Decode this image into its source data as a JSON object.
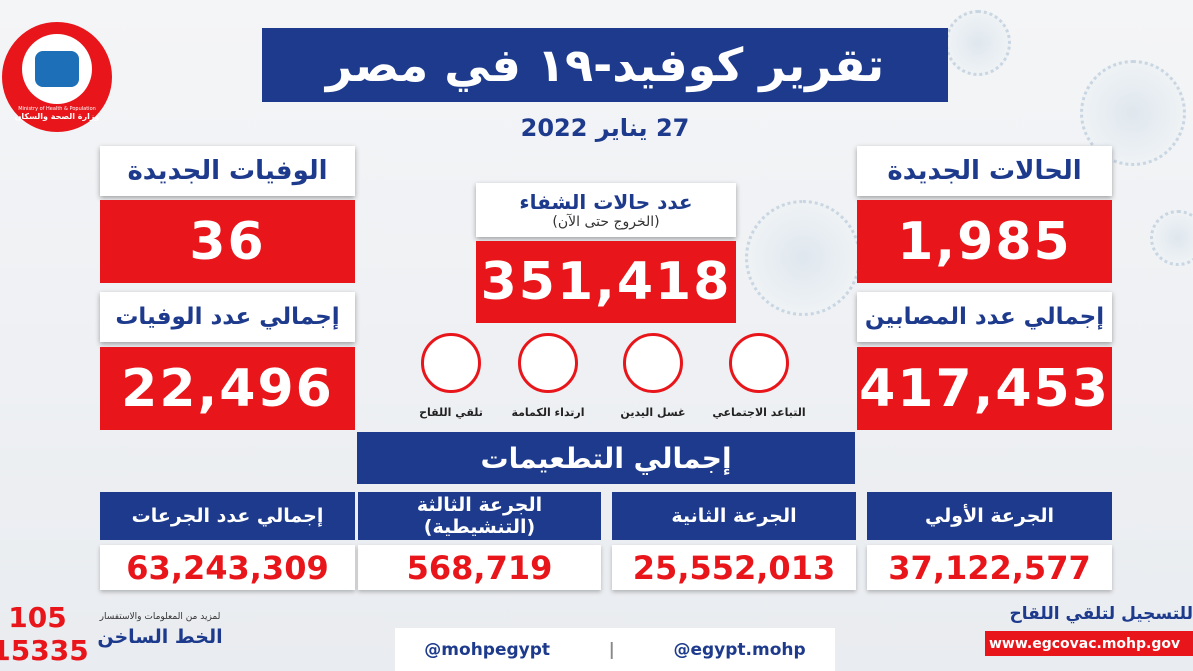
{
  "logo": {
    "name_en": "Ministry of Health & Population",
    "name_ar": "وزارة الصحة والسكان"
  },
  "header": {
    "title": "تقرير كوفيد-١٩ في مصر",
    "date": "27 يناير 2022"
  },
  "new_cases": {
    "label": "الحالات الجديدة",
    "value": "1,985"
  },
  "total_cases": {
    "label": "إجمالي عدد المصابين",
    "value": "417,453"
  },
  "new_deaths": {
    "label": "الوفيات الجديدة",
    "value": "36"
  },
  "total_deaths": {
    "label": "إجمالي عدد الوفيات",
    "value": "22,496"
  },
  "recovered": {
    "label": "عدد حالات الشفاء",
    "sublabel": "(الخروج حتى الآن)",
    "value": "351,418"
  },
  "precautions": [
    "التباعد الاجتماعي",
    "غسل اليدين",
    "ارتداء الكمامة",
    "تلقي اللقاح"
  ],
  "vaccinations": {
    "title": "إجمالي التطعيمات",
    "doses": [
      {
        "label": "الجرعة الأولي",
        "value": "37,122,577"
      },
      {
        "label": "الجرعة الثانية",
        "value": "25,552,013"
      },
      {
        "label": "الجرعة الثالثة (التنشيطية)",
        "value": "568,719"
      },
      {
        "label": "إجمالي عدد الجرعات",
        "value": "63,243,309"
      }
    ]
  },
  "footer": {
    "hotline_short": "105",
    "hotline_long": "15335",
    "info_text": "لمزيد من المعلومات والاستفسار",
    "hotline_label": "الخط الساخن",
    "facebook": "@egypt.mohp",
    "social": "@mohpegypt",
    "register_text": "للتسجيل لتلقي اللقاح",
    "register_url": "www.egcovac.mohp.gov"
  }
}
